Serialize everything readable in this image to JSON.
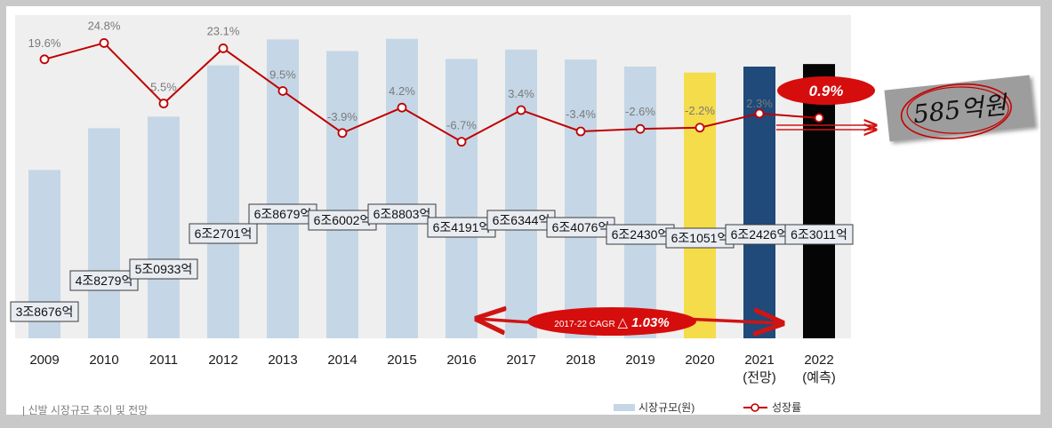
{
  "chart_data": {
    "type": "bar+line",
    "categories": [
      "2009",
      "2010",
      "2011",
      "2012",
      "2013",
      "2014",
      "2015",
      "2016",
      "2017",
      "2018",
      "2019",
      "2020",
      "2021\n(전망)",
      "2022\n(예측)"
    ],
    "series": [
      {
        "name": "시장규모(원)",
        "kind": "bar",
        "values": [
          38676,
          48279,
          50933,
          62701,
          68679,
          66002,
          68803,
          64191,
          66344,
          64076,
          62430,
          61051,
          62426,
          63011
        ],
        "labels": [
          "3조8676억",
          "4조8279억",
          "5조0933억",
          "6조2701억",
          "6조8679억",
          "6조6002억",
          "6조8803억",
          "6조4191억",
          "6조6344억",
          "6조4076억",
          "6조2430억",
          "6조1051억",
          "6조2426억",
          "6조3011억"
        ],
        "colors": [
          "#c5d7e6",
          "#c5d7e6",
          "#c5d7e6",
          "#c5d7e6",
          "#c5d7e6",
          "#c5d7e6",
          "#c5d7e6",
          "#c5d7e6",
          "#c5d7e6",
          "#c5d7e6",
          "#c5d7e6",
          "#f5dc4a",
          "#1f4a7a",
          "#050505"
        ]
      },
      {
        "name": "성장률",
        "kind": "line",
        "values": [
          19.6,
          24.8,
          5.5,
          23.1,
          9.5,
          -3.9,
          4.2,
          -6.7,
          3.4,
          -3.4,
          -2.6,
          -2.2,
          2.3,
          0.9
        ],
        "labels": [
          "19.6%",
          "24.8%",
          "5.5%",
          "23.1%",
          "9.5%",
          "-3.9%",
          "4.2%",
          "-6.7%",
          "3.4%",
          "-3.4%",
          "-2.6%",
          "-2.2%",
          "2.3%",
          ""
        ],
        "color": "#c00000"
      }
    ],
    "annotations": {
      "growth_2022": "0.9%",
      "increase_2022": "585억원",
      "cagr": "2017-22 CAGR",
      "cagr_value": "△ 1.03%"
    },
    "legend": {
      "bar_label": "시장규모(원)",
      "line_label": "성장률",
      "position": "bottom-right"
    }
  },
  "caption": "| 신발 시장규모 추이 및 전망"
}
